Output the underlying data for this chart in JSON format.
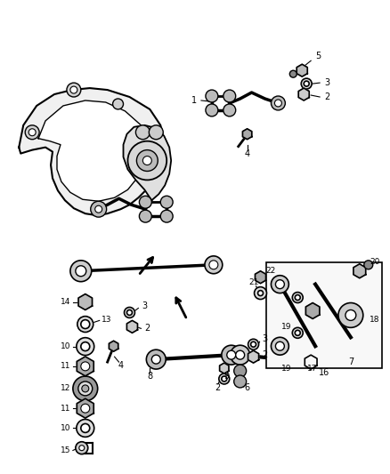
{
  "bg_color": "#ffffff",
  "line_color": "#000000",
  "lw": 1.2
}
